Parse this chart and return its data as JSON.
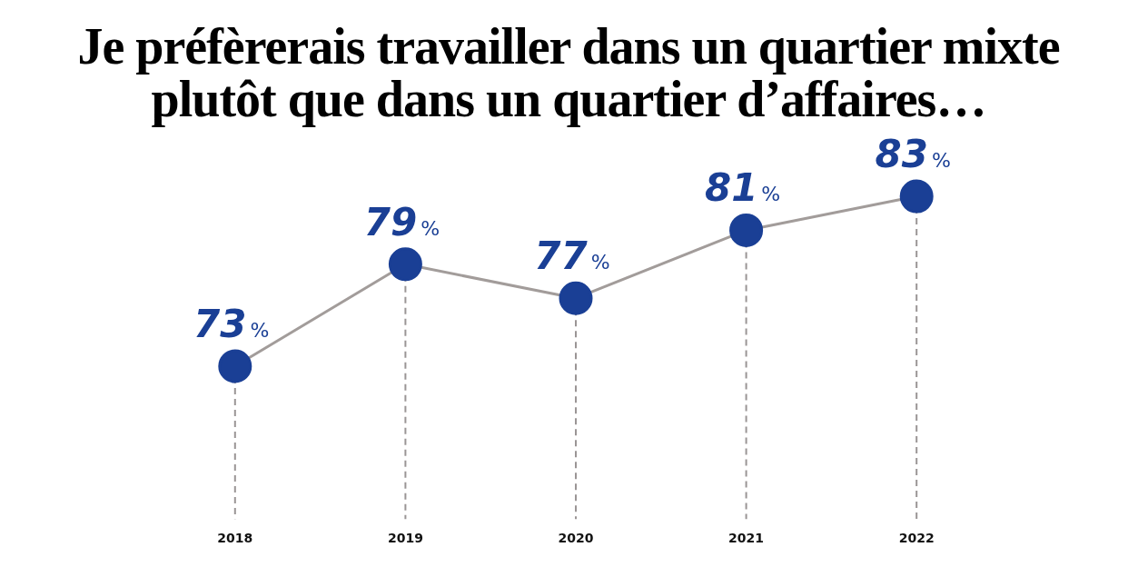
{
  "chart_data": {
    "type": "line",
    "title": "Je préfèrerais travailler dans un quartier mixte plutôt que dans un quartier d’affaires…",
    "categories": [
      "2018",
      "2019",
      "2020",
      "2021",
      "2022"
    ],
    "series": [
      {
        "color": "#1a3f95",
        "values": [
          73,
          79,
          77,
          81,
          83
        ],
        "value_labels": [
          "73%",
          "79%",
          "77%",
          "81%",
          "83%"
        ]
      }
    ],
    "marker": "circle",
    "legend": false,
    "grid": "x",
    "tick_labels": "x"
  }
}
